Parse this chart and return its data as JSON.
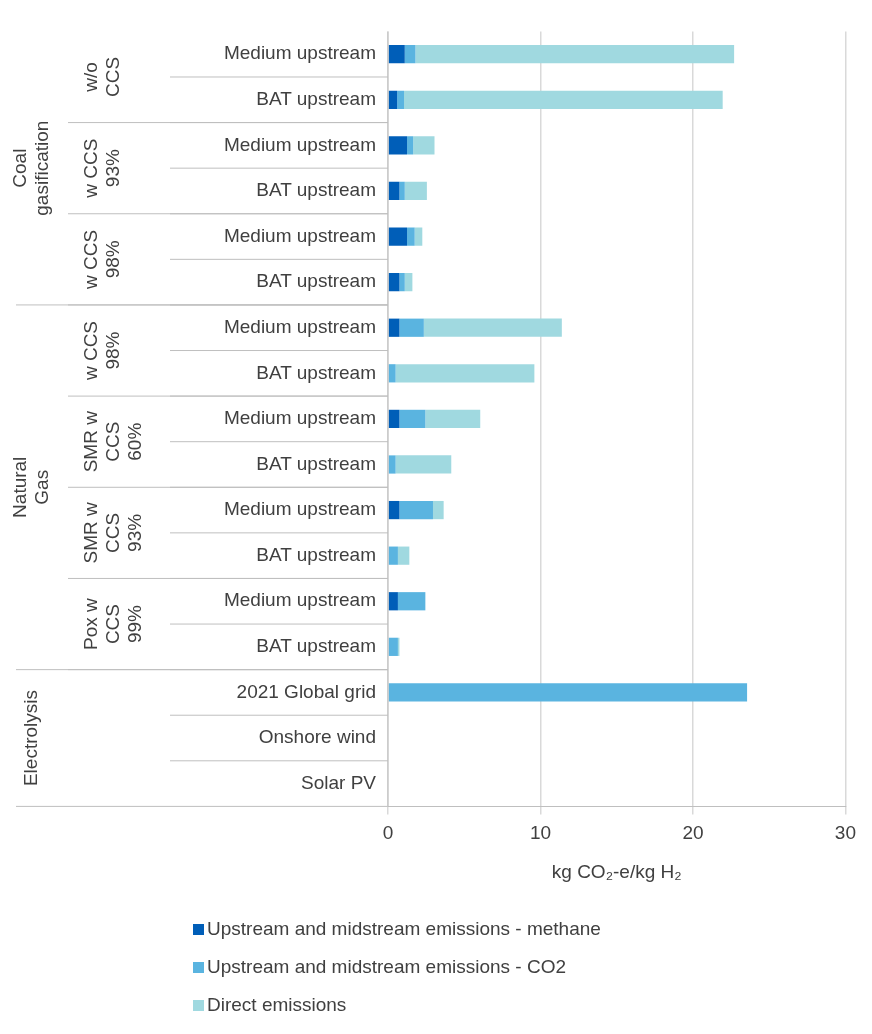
{
  "chart_data": {
    "type": "bar",
    "orientation": "horizontal",
    "stacked": true,
    "categories": [
      "Medium upstream",
      "BAT upstream",
      "Medium upstream",
      "BAT upstream",
      "Medium upstream",
      "BAT upstream",
      "Medium upstream",
      "BAT upstream",
      "Medium upstream",
      "BAT upstream",
      "Medium upstream",
      "BAT upstream",
      "Medium upstream",
      "BAT upstream",
      "2021 Global grid",
      "Onshore wind",
      "Solar PV"
    ],
    "series": [
      {
        "name": "Upstream and midstream emissions - methane",
        "color": "#005eb8",
        "values": [
          1.1,
          0.6,
          1.25,
          0.75,
          1.25,
          0.75,
          0.75,
          0,
          0.75,
          0,
          0.75,
          0,
          0.65,
          0,
          0,
          0,
          0
        ]
      },
      {
        "name": "Upstream and midstream emissions - CO2",
        "color": "#5ab4e0",
        "values": [
          0.7,
          0.45,
          0.4,
          0.35,
          0.5,
          0.35,
          1.6,
          0.5,
          1.7,
          0.5,
          2.2,
          0.65,
          1.8,
          0.65,
          23.55,
          0,
          0
        ]
      },
      {
        "name": "Direct emissions",
        "color": "#a0d9e0",
        "values": [
          20.9,
          20.9,
          1.4,
          1.45,
          0.5,
          0.5,
          9.05,
          9.1,
          3.6,
          3.65,
          0.7,
          0.75,
          0,
          0.1,
          0,
          0,
          0
        ]
      }
    ],
    "xlim": [
      0,
      30
    ],
    "xticks": [
      0,
      10,
      20,
      30
    ],
    "xlabel": "kg CO₂-e/kg H₂",
    "grid": "x",
    "legend": "bottom",
    "annotations": [
      "Coal gasification",
      "w/o CCS",
      "w CCS 93%",
      "w CCS 98%",
      "Natural Gas",
      "w CCS 98%",
      "SMR w CCS 60%",
      "SMR w CCS 93%",
      "Pox w CCS 99%",
      "Electrolysis"
    ]
  }
}
